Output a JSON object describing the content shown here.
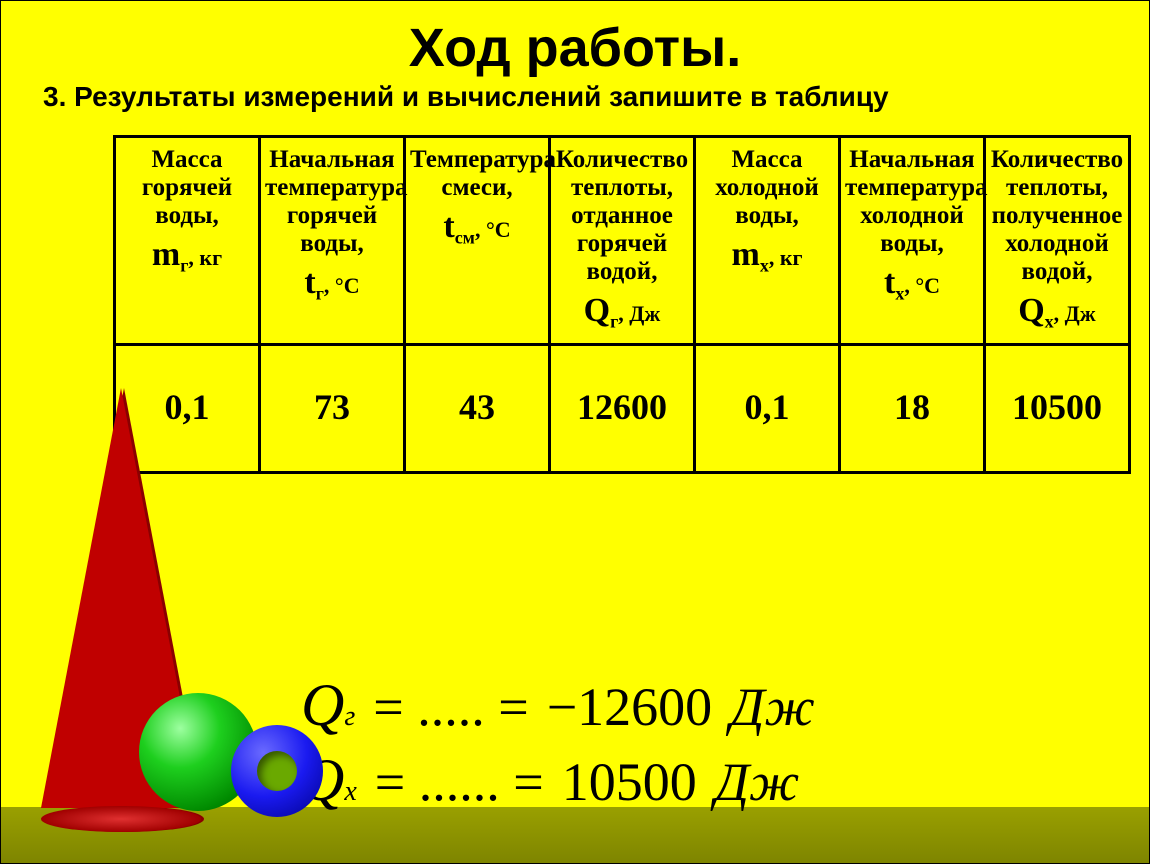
{
  "title": "Ход работы.",
  "subtitle": "3. Результаты измерений и вычислений запишите в таблицу",
  "table": {
    "border_color": "#000000",
    "background_color": "#ffff00",
    "header_fontsize": 25,
    "value_fontsize": 36,
    "columns": [
      {
        "text": "Масса горячей воды,",
        "symbol": "m",
        "sub": "г",
        "unit": ", кг"
      },
      {
        "text": "Начальная температура горячей воды,",
        "symbol": "t",
        "sub": "г",
        "unit": ", °C"
      },
      {
        "text": "Температура смеси,",
        "symbol": "t",
        "sub": "см",
        "unit": ", °C"
      },
      {
        "text": "Количество теплоты, отданное горячей водой,",
        "symbol": "Q",
        "sub": "г",
        "unit": ", Дж"
      },
      {
        "text": "Масса холодной воды,",
        "symbol": "m",
        "sub": "х",
        "unit": ", кг"
      },
      {
        "text": "Начальная температура холодной воды,",
        "symbol": "t",
        "sub": "х",
        "unit": ", °C"
      },
      {
        "text": "Количество теплоты, полученное холодной водой,",
        "symbol": "Q",
        "sub": "х",
        "unit": ", Дж"
      }
    ],
    "row": [
      "0,1",
      "73",
      "43",
      "12600",
      "0,1",
      "18",
      "10500"
    ]
  },
  "formulas": {
    "line1": {
      "lhs_sym": "Q",
      "lhs_sub": "г",
      "mid": " = ..... = ",
      "rhs": "−12600",
      "unit": "Дж"
    },
    "line2": {
      "lhs_sym": "Q",
      "lhs_sub": "х",
      "mid": " = ...... = ",
      "rhs": "10500",
      "unit": "Дж"
    },
    "fontsize": 54,
    "color": "#000000"
  },
  "colors": {
    "page_bg": "#ffff00",
    "cone": "#c00000",
    "sphere": "#1ecf1e",
    "torus": "#1a1af0",
    "floor": "#7e8500"
  }
}
